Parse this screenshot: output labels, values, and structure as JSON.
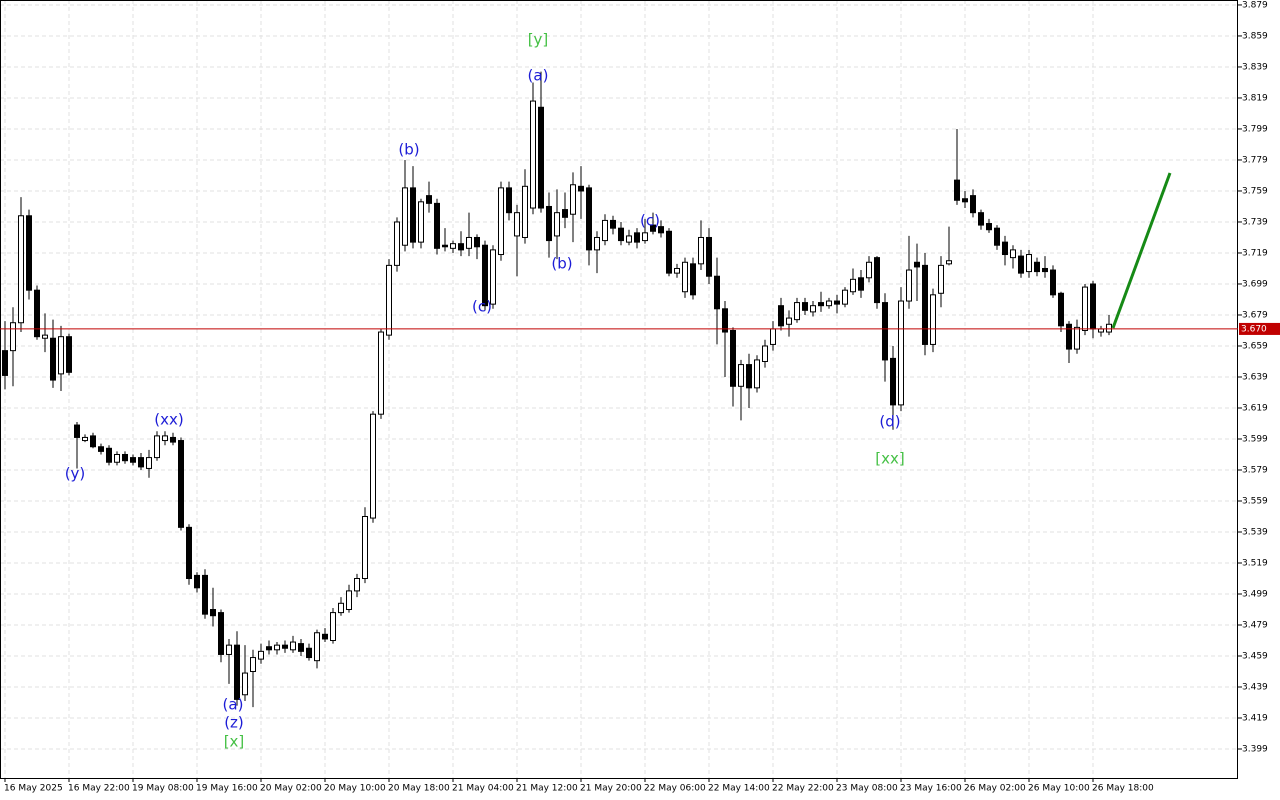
{
  "chart_data": {
    "type": "candlestick",
    "categories": [
      "16 May 2025",
      null,
      null,
      null,
      null,
      null,
      null,
      null,
      "16 May 22:00",
      null,
      null,
      null,
      null,
      null,
      null,
      null,
      "19 May 08:00",
      null,
      null,
      null,
      null,
      null,
      null,
      null,
      "19 May 16:00",
      null,
      null,
      null,
      null,
      null,
      null,
      null,
      "20 May 02:00",
      null,
      null,
      null,
      null,
      null,
      null,
      null,
      "20 May 10:00",
      null,
      null,
      null,
      null,
      null,
      null,
      null,
      "20 May 18:00",
      null,
      null,
      null,
      null,
      null,
      null,
      null,
      "21 May 04:00",
      null,
      null,
      null,
      null,
      null,
      null,
      null,
      "21 May 12:00",
      null,
      null,
      null,
      null,
      null,
      null,
      null,
      "21 May 20:00",
      null,
      null,
      null,
      null,
      null,
      null,
      null,
      "22 May 06:00",
      null,
      null,
      null,
      null,
      null,
      null,
      null,
      "22 May 14:00",
      null,
      null,
      null,
      null,
      null,
      null,
      null,
      "22 May 22:00",
      null,
      null,
      null,
      null,
      null,
      null,
      null,
      "23 May 08:00",
      null,
      null,
      null,
      null,
      null,
      null,
      null,
      "23 May 16:00",
      null,
      null,
      null,
      null,
      null,
      null,
      null,
      "26 May 02:00",
      null,
      null,
      null,
      null,
      null,
      null,
      null,
      "26 May 10:00",
      null,
      null,
      null,
      null,
      null,
      null,
      null,
      "26 May 18:00",
      null,
      null
    ],
    "open": [
      3.656,
      3.656,
      3.674,
      3.743,
      3.695,
      3.664,
      3.664,
      3.641,
      3.665,
      3.608,
      3.598,
      3.601,
      3.594,
      3.593,
      3.584,
      3.589,
      3.587,
      3.587,
      3.58,
      3.587,
      3.598,
      3.6,
      3.598,
      3.542,
      3.511,
      3.511,
      3.489,
      3.487,
      3.46,
      3.466,
      3.434,
      3.449,
      3.457,
      3.465,
      3.463,
      3.466,
      3.463,
      3.467,
      3.464,
      3.456,
      3.473,
      3.469,
      3.487,
      3.489,
      3.501,
      3.509,
      3.548,
      3.615,
      3.666,
      3.711,
      3.724,
      3.761,
      3.726,
      3.756,
      3.751,
      3.724,
      3.722,
      3.725,
      3.722,
      3.729,
      3.724,
      3.686,
      3.718,
      3.761,
      3.73,
      3.729,
      3.748,
      3.813,
      3.749,
      3.73,
      3.747,
      3.744,
      3.762,
      3.761,
      3.721,
      3.727,
      3.74,
      3.735,
      3.726,
      3.732,
      3.727,
      3.737,
      3.736,
      3.733,
      3.706,
      3.694,
      3.712,
      3.712,
      3.729,
      3.704,
      3.683,
      3.669,
      3.633,
      3.647,
      3.632,
      3.649,
      3.66,
      3.685,
      3.673,
      3.676,
      3.687,
      3.681,
      3.687,
      3.685,
      3.688,
      3.686,
      3.694,
      3.703,
      3.703,
      3.716,
      3.687,
      3.651,
      3.621,
      3.688,
      3.713,
      3.711,
      3.66,
      3.693,
      3.712,
      3.766,
      3.754,
      3.756,
      3.745,
      3.738,
      3.735,
      3.726,
      3.716,
      3.717,
      3.707,
      3.713,
      3.709,
      3.708,
      3.693,
      3.673,
      3.657,
      3.669,
      3.699,
      3.668,
      3.668
    ],
    "high": [
      3.675,
      3.684,
      3.755,
      3.747,
      3.698,
      3.68,
      3.676,
      3.672,
      3.667,
      3.61,
      3.602,
      3.603,
      3.596,
      3.595,
      3.591,
      3.591,
      3.589,
      3.59,
      3.592,
      3.604,
      3.604,
      3.603,
      3.6,
      3.544,
      3.513,
      3.515,
      3.503,
      3.489,
      3.47,
      3.475,
      3.466,
      3.463,
      3.467,
      3.469,
      3.468,
      3.469,
      3.472,
      3.47,
      3.467,
      3.476,
      3.477,
      3.49,
      3.497,
      3.505,
      3.512,
      3.555,
      3.617,
      3.67,
      3.715,
      3.742,
      3.779,
      3.775,
      3.754,
      3.765,
      3.754,
      3.735,
      3.727,
      3.733,
      3.745,
      3.731,
      3.727,
      3.724,
      3.765,
      3.765,
      3.75,
      3.773,
      3.829,
      3.836,
      3.758,
      3.76,
      3.758,
      3.771,
      3.775,
      3.763,
      3.733,
      3.744,
      3.743,
      3.739,
      3.734,
      3.735,
      3.741,
      3.745,
      3.74,
      3.735,
      3.712,
      3.716,
      3.716,
      3.74,
      3.735,
      3.716,
      3.688,
      3.671,
      3.65,
      3.654,
      3.653,
      3.663,
      3.675,
      3.69,
      3.682,
      3.69,
      3.69,
      3.688,
      3.694,
      3.69,
      3.692,
      3.697,
      3.709,
      3.708,
      3.717,
      3.717,
      3.693,
      3.659,
      3.697,
      3.73,
      3.725,
      3.719,
      3.696,
      3.717,
      3.736,
      3.799,
      3.759,
      3.76,
      3.747,
      3.741,
      3.737,
      3.73,
      3.724,
      3.721,
      3.721,
      3.716,
      3.717,
      3.711,
      3.694,
      3.675,
      3.676,
      3.699,
      3.701,
      3.672,
      3.679
    ],
    "low": [
      3.631,
      3.633,
      3.668,
      3.689,
      3.663,
      3.655,
      3.632,
      3.63,
      3.64,
      3.58,
      3.597,
      3.593,
      3.589,
      3.582,
      3.582,
      3.583,
      3.582,
      3.579,
      3.574,
      3.585,
      3.595,
      3.595,
      3.54,
      3.505,
      3.5,
      3.483,
      3.478,
      3.455,
      3.441,
      3.427,
      3.43,
      3.426,
      3.454,
      3.46,
      3.46,
      3.461,
      3.461,
      3.459,
      3.456,
      3.451,
      3.468,
      3.467,
      3.485,
      3.487,
      3.497,
      3.506,
      3.545,
      3.612,
      3.663,
      3.707,
      3.72,
      3.722,
      3.722,
      3.745,
      3.718,
      3.72,
      3.719,
      3.717,
      3.717,
      3.715,
      3.682,
      3.683,
      3.714,
      3.74,
      3.704,
      3.725,
      3.744,
      3.745,
      3.716,
      3.715,
      3.735,
      3.726,
      3.741,
      3.711,
      3.706,
      3.724,
      3.731,
      3.724,
      3.724,
      3.722,
      3.725,
      3.731,
      3.729,
      3.704,
      3.703,
      3.69,
      3.689,
      3.708,
      3.699,
      3.66,
      3.639,
      3.62,
      3.611,
      3.619,
      3.629,
      3.645,
      3.656,
      3.669,
      3.665,
      3.674,
      3.679,
      3.678,
      3.681,
      3.683,
      3.68,
      3.684,
      3.692,
      3.69,
      3.7,
      3.683,
      3.636,
      3.605,
      3.617,
      3.683,
      3.688,
      3.653,
      3.655,
      3.684,
      3.711,
      3.75,
      3.748,
      3.742,
      3.734,
      3.732,
      3.721,
      3.711,
      3.709,
      3.703,
      3.703,
      3.704,
      3.703,
      3.69,
      3.668,
      3.648,
      3.654,
      3.666,
      3.664,
      3.665,
      3.666
    ],
    "close": [
      3.64,
      3.674,
      3.743,
      3.695,
      3.665,
      3.666,
      3.637,
      3.665,
      3.642,
      3.6,
      3.6,
      3.594,
      3.591,
      3.584,
      3.589,
      3.585,
      3.584,
      3.581,
      3.587,
      3.601,
      3.601,
      3.597,
      3.542,
      3.509,
      3.503,
      3.486,
      3.485,
      3.46,
      3.466,
      3.431,
      3.448,
      3.458,
      3.462,
      3.463,
      3.466,
      3.464,
      3.468,
      3.462,
      3.458,
      3.474,
      3.47,
      3.487,
      3.493,
      3.501,
      3.509,
      3.549,
      3.615,
      3.668,
      3.711,
      3.739,
      3.761,
      3.726,
      3.752,
      3.751,
      3.722,
      3.723,
      3.725,
      3.721,
      3.729,
      3.723,
      3.685,
      3.721,
      3.761,
      3.745,
      3.745,
      3.762,
      3.817,
      3.748,
      3.727,
      3.745,
      3.742,
      3.763,
      3.759,
      3.721,
      3.729,
      3.74,
      3.735,
      3.727,
      3.73,
      3.726,
      3.732,
      3.733,
      3.732,
      3.706,
      3.709,
      3.713,
      3.692,
      3.729,
      3.704,
      3.683,
      3.668,
      3.633,
      3.647,
      3.632,
      3.65,
      3.659,
      3.67,
      3.672,
      3.677,
      3.687,
      3.682,
      3.685,
      3.685,
      3.688,
      3.686,
      3.695,
      3.702,
      3.695,
      3.713,
      3.687,
      3.65,
      3.621,
      3.688,
      3.708,
      3.71,
      3.66,
      3.692,
      3.711,
      3.714,
      3.753,
      3.752,
      3.745,
      3.737,
      3.734,
      3.724,
      3.718,
      3.721,
      3.706,
      3.718,
      3.707,
      3.707,
      3.692,
      3.672,
      3.657,
      3.671,
      3.697,
      3.67,
      3.67,
      3.673
    ],
    "up_color": "#ffffff",
    "down_color": "#000000",
    "ylim": [
      3.3803,
      3.8822
    ],
    "yticks": [
      3.399,
      3.419,
      3.439,
      3.459,
      3.479,
      3.499,
      3.519,
      3.539,
      3.559,
      3.579,
      3.599,
      3.619,
      3.639,
      3.659,
      3.679,
      3.699,
      3.719,
      3.739,
      3.759,
      3.779,
      3.799,
      3.819,
      3.839,
      3.859,
      3.879
    ],
    "grid": true,
    "price_line": {
      "value": 3.67,
      "label": "3.670"
    },
    "price_line_color": "#c00000",
    "annotations": [
      {
        "text": "(y)",
        "color": "#1c1cd6"
      },
      {
        "text": "(xx)",
        "color": "#1c1cd6"
      },
      {
        "text": "(a)",
        "color": "#1c1cd6"
      },
      {
        "text": "(z)",
        "color": "#1c1cd6"
      },
      {
        "text": "[x]",
        "color": "#44c044"
      },
      {
        "text": "(b)",
        "color": "#1c1cd6"
      },
      {
        "text": "(c)",
        "color": "#1c1cd6"
      },
      {
        "text": "[y]",
        "color": "#44c044"
      },
      {
        "text": "(a)",
        "color": "#1c1cd6"
      },
      {
        "text": "(b)",
        "color": "#1c1cd6"
      },
      {
        "text": "(c)",
        "color": "#1c1cd6"
      },
      {
        "text": "(d)",
        "color": "#1c1cd6"
      },
      {
        "text": "[xx]",
        "color": "#44c044"
      }
    ]
  }
}
